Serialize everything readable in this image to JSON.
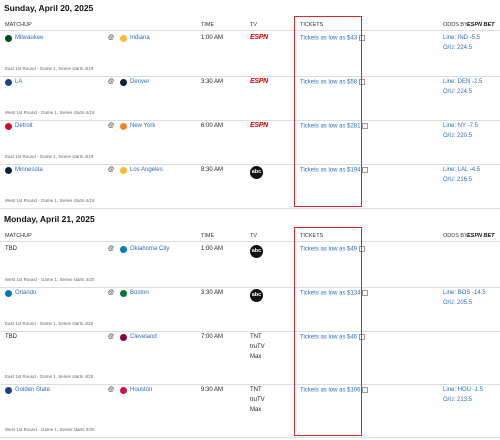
{
  "at_symbol": "@",
  "sections": [
    {
      "date": "Sunday, April 20, 2025",
      "headers": {
        "matchup": "MATCHUP",
        "time": "TIME",
        "tv": "TV",
        "tickets": "TICKETS",
        "odds_by": "ODDS BY",
        "odds_brand": "ESPN BET"
      },
      "games": [
        {
          "away": "Milwaukee",
          "away_color": "#00471b",
          "home": "Indiana",
          "home_color": "#fdbb30",
          "time": "1:00 AM",
          "tv": [
            "ESPN"
          ],
          "tickets": "Tickets as low as $43",
          "line": "Line: IND -5.5",
          "ou": "O/U: 224.5",
          "note": "East 1st Round - Game 1, Series starts 4/19"
        },
        {
          "away": "LA",
          "away_color": "#1d428a",
          "home": "Denver",
          "home_color": "#0e2240",
          "time": "3:30 AM",
          "tv": [
            "ESPN"
          ],
          "tickets": "Tickets as low as $58",
          "line": "Line: DEN -2.5",
          "ou": "O/U: 224.5",
          "note": "West 1st Round - Game 1, Series starts 4/19"
        },
        {
          "away": "Detroit",
          "away_color": "#c8102e",
          "home": "New York",
          "home_color": "#f58426",
          "time": "6:00 AM",
          "tv": [
            "ESPN"
          ],
          "tickets": "Tickets as low as $281",
          "line": "Line: NY -7.5",
          "ou": "O/U: 220.5",
          "note": "East 1st Round - Game 1, Series starts 4/19"
        },
        {
          "away": "Minnesota",
          "away_color": "#0c2340",
          "home": "Los Angeles",
          "home_color": "#fdb927",
          "time": "8:30 AM",
          "tv": [
            "abc"
          ],
          "tickets": "Tickets as low as $194",
          "line": "Line: LAL -4.5",
          "ou": "O/U: 216.5",
          "note": "West 1st Round - Game 1, Series starts 4/19"
        }
      ]
    },
    {
      "date": "Monday, April 21, 2025",
      "headers": {
        "matchup": "MATCHUP",
        "time": "TIME",
        "tv": "TV",
        "tickets": "TICKETS",
        "odds_by": "ODDS BY",
        "odds_brand": "ESPN BET"
      },
      "games": [
        {
          "away": "TBD",
          "home": "Oklahoma City",
          "home_color": "#007ac1",
          "time": "1:00 AM",
          "tv": [
            "abc"
          ],
          "tickets": "Tickets as low as $49",
          "note": "West 1st Round - Game 1, Series starts 4/20"
        },
        {
          "away": "Orlando",
          "away_color": "#0077c0",
          "home": "Boston",
          "home_color": "#007a33",
          "time": "3:30 AM",
          "tv": [
            "abc"
          ],
          "tickets": "Tickets as low as $134",
          "line": "Line: BOS -14.5",
          "ou": "O/U: 205.5",
          "note": "East 1st Round - Game 1, Series starts 4/20"
        },
        {
          "away": "TBD",
          "home": "Cleveland",
          "home_color": "#860038",
          "time": "7:00 AM",
          "tv": [
            "TNT",
            "truTV",
            "Max"
          ],
          "tickets": "Tickets as low as $46",
          "note": "East 1st Round - Game 1, Series starts 4/20"
        },
        {
          "away": "Golden State",
          "away_color": "#1d428a",
          "home": "Houston",
          "home_color": "#ce1141",
          "time": "9:30 AM",
          "tv": [
            "TNT",
            "truTV",
            "Max"
          ],
          "tickets": "Tickets as low as $106",
          "line": "Line: HOU -1.5",
          "ou": "O/U: 213.5",
          "note": "West 1st Round - Game 1, Series starts 4/20"
        }
      ]
    }
  ]
}
